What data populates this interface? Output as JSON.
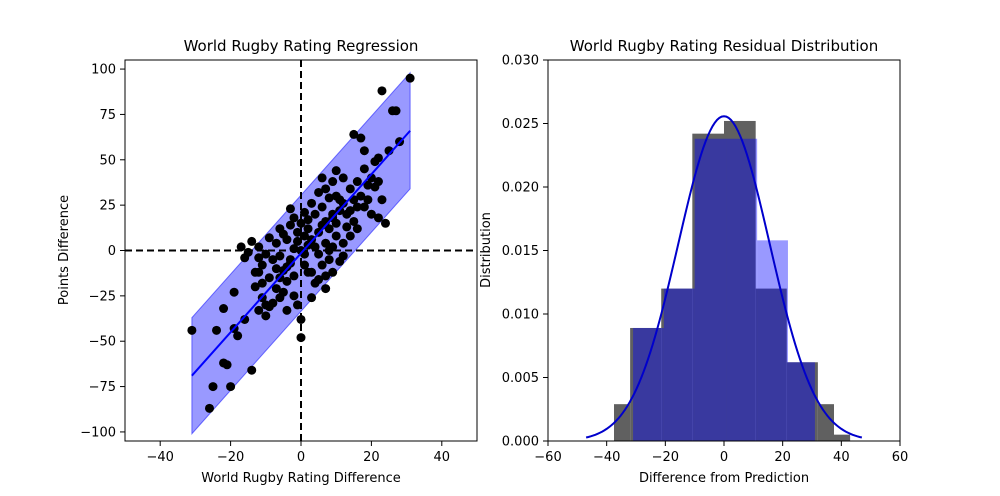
{
  "chart_data": [
    {
      "type": "scatter",
      "title": "World Rugby Rating Regression",
      "xlabel": "World Rugby Rating Difference",
      "ylabel": "Points Difference",
      "xlim": [
        -50,
        50
      ],
      "ylim": [
        -105,
        105
      ],
      "xticks": [
        -40,
        -20,
        0,
        20,
        40
      ],
      "yticks": [
        -100,
        -75,
        -50,
        -25,
        0,
        25,
        50,
        75,
        100
      ],
      "grid": false,
      "colors": {
        "points": "#000000",
        "fit_line": "#0000ff",
        "band": "#0000ff"
      },
      "reference_lines": {
        "x": 0,
        "y": 0,
        "style": "dashed",
        "color": "#000000"
      },
      "fit_line": {
        "x": [
          -31,
          31
        ],
        "y": [
          -69,
          66
        ]
      },
      "prediction_band": {
        "x": [
          -31,
          31
        ],
        "lower": [
          -101,
          34
        ],
        "upper": [
          -37,
          98
        ]
      },
      "points": [
        [
          -31,
          -44
        ],
        [
          -26,
          -87
        ],
        [
          -25,
          -75
        ],
        [
          -22,
          -62
        ],
        [
          -21,
          -63
        ],
        [
          -20,
          -75
        ],
        [
          -24,
          -44
        ],
        [
          -19,
          -43
        ],
        [
          -22,
          -32
        ],
        [
          -19,
          -23
        ],
        [
          -18,
          -47
        ],
        [
          -16,
          -38
        ],
        [
          -14,
          -66
        ],
        [
          -13,
          -20
        ],
        [
          -12,
          -12
        ],
        [
          -11,
          -26
        ],
        [
          -10,
          -36
        ],
        [
          -9,
          -31
        ],
        [
          -8,
          -29
        ],
        [
          -7,
          -21
        ],
        [
          -6,
          -15
        ],
        [
          -5,
          -23
        ],
        [
          -4,
          -9
        ],
        [
          -3,
          -5
        ],
        [
          -2,
          1
        ],
        [
          -1,
          -30
        ],
        [
          0,
          -48
        ],
        [
          0,
          -38
        ],
        [
          -2,
          -25
        ],
        [
          -4,
          -17
        ],
        [
          -6,
          -3
        ],
        [
          -7,
          4
        ],
        [
          -8,
          -5
        ],
        [
          -10,
          -2
        ],
        [
          -11,
          -8
        ],
        [
          -12,
          2
        ],
        [
          -13,
          -12
        ],
        [
          -15,
          -1
        ],
        [
          -16,
          -4
        ],
        [
          -17,
          2
        ],
        [
          -14,
          5
        ],
        [
          -12,
          -4
        ],
        [
          -9,
          7
        ],
        [
          -5,
          9
        ],
        [
          -3,
          14
        ],
        [
          -1,
          5
        ],
        [
          1,
          8
        ],
        [
          2,
          12
        ],
        [
          3,
          -26
        ],
        [
          2,
          -12
        ],
        [
          1,
          -8
        ],
        [
          4,
          -18
        ],
        [
          5,
          -2
        ],
        [
          6,
          -8
        ],
        [
          7,
          -14
        ],
        [
          8,
          -5
        ],
        [
          9,
          2
        ],
        [
          10,
          8
        ],
        [
          11,
          -6
        ],
        [
          12,
          -3
        ],
        [
          13,
          13
        ],
        [
          11,
          22
        ],
        [
          10,
          30
        ],
        [
          9,
          38
        ],
        [
          8,
          29
        ],
        [
          7,
          16
        ],
        [
          6,
          24
        ],
        [
          5,
          32
        ],
        [
          4,
          20
        ],
        [
          3,
          26
        ],
        [
          2,
          17
        ],
        [
          1,
          21
        ],
        [
          0,
          15
        ],
        [
          -1,
          10
        ],
        [
          -2,
          18
        ],
        [
          -3,
          23
        ],
        [
          -4,
          6
        ],
        [
          -6,
          12
        ],
        [
          0,
          0
        ],
        [
          1,
          -2
        ],
        [
          2,
          3
        ],
        [
          3,
          6
        ],
        [
          4,
          2
        ],
        [
          5,
          10
        ],
        [
          6,
          14
        ],
        [
          7,
          4
        ],
        [
          8,
          12
        ],
        [
          9,
          20
        ],
        [
          10,
          15
        ],
        [
          12,
          26
        ],
        [
          13,
          20
        ],
        [
          14,
          34
        ],
        [
          15,
          28
        ],
        [
          16,
          38
        ],
        [
          17,
          30
        ],
        [
          18,
          45
        ],
        [
          19,
          36
        ],
        [
          20,
          40
        ],
        [
          21,
          49
        ],
        [
          22,
          51
        ],
        [
          18,
          55
        ],
        [
          15,
          64
        ],
        [
          17,
          62
        ],
        [
          21,
          35
        ],
        [
          23,
          28
        ],
        [
          25,
          55
        ],
        [
          26,
          77
        ],
        [
          27,
          77
        ],
        [
          28,
          60
        ],
        [
          24,
          15
        ],
        [
          20,
          20
        ],
        [
          22,
          38
        ],
        [
          18,
          24
        ],
        [
          16,
          12
        ],
        [
          14,
          22
        ],
        [
          12,
          40
        ],
        [
          11,
          28
        ],
        [
          10,
          44
        ],
        [
          9,
          18
        ],
        [
          7,
          34
        ],
        [
          6,
          40
        ],
        [
          -2,
          -14
        ],
        [
          -3,
          -7
        ],
        [
          -5,
          -11
        ],
        [
          -7,
          -10
        ],
        [
          -9,
          -15
        ],
        [
          -11,
          -18
        ],
        [
          -6,
          -26
        ],
        [
          -4,
          -33
        ],
        [
          3,
          -12
        ],
        [
          5,
          -16
        ],
        [
          7,
          -21
        ],
        [
          8,
          0
        ],
        [
          9,
          -12
        ],
        [
          12,
          4
        ],
        [
          14,
          8
        ],
        [
          15,
          16
        ],
        [
          16,
          24
        ],
        [
          19,
          28
        ],
        [
          22,
          18
        ],
        [
          23,
          88
        ],
        [
          31,
          95
        ],
        [
          -10,
          -30
        ],
        [
          -12,
          -33
        ]
      ]
    },
    {
      "type": "bar",
      "title": "World Rugby Rating Residual Distribution",
      "xlabel": "Difference from Prediction",
      "ylabel": "Distribution",
      "xlim": [
        -60,
        60
      ],
      "ylim": [
        0,
        0.03
      ],
      "xticks": [
        -60,
        -40,
        -20,
        0,
        20,
        40,
        60
      ],
      "yticks": [
        0.0,
        0.005,
        0.01,
        0.015,
        0.02,
        0.025,
        0.03
      ],
      "grid": false,
      "colors": {
        "hist_gray": "#606060",
        "hist_blue": "#0000ff",
        "curve": "#0000cc",
        "overlap": "#3b3b6b"
      },
      "hist_gray": {
        "edges": [
          -37.5,
          -32,
          -21.4,
          -10.8,
          0,
          10.8,
          21.4,
          32,
          37.5,
          43
        ],
        "values": [
          0.0029,
          0.0089,
          0.012,
          0.0242,
          0.0252,
          0.012,
          0.0062,
          0.0029,
          0.0005
        ]
      },
      "hist_blue": {
        "edges": [
          -31,
          -20.5,
          -10,
          0.8,
          11.3,
          21.8,
          31
        ],
        "values": [
          0.0089,
          0.012,
          0.0238,
          0.0238,
          0.0158,
          0.0062
        ]
      },
      "normal_curve": {
        "mean": 0,
        "std": 15.6,
        "x_range": [
          -47,
          47
        ]
      }
    }
  ]
}
